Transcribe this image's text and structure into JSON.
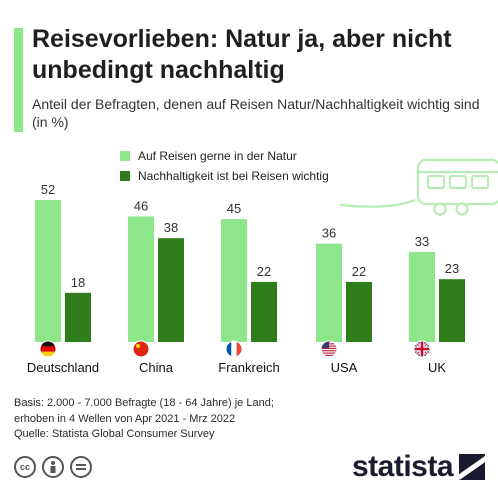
{
  "header": {
    "title": "Reisevorlieben: Natur ja, aber nicht unbedingt nachhaltig",
    "subtitle": "Anteil der Befragten, denen auf Reisen Natur/Nachhaltigkeit wichtig sind (in %)"
  },
  "colors": {
    "accent": "#8ee68a",
    "series_light": "#8ee68a",
    "series_dark": "#2e7d1a"
  },
  "chart_data": {
    "type": "bar",
    "categories": [
      "Deutschland",
      "China",
      "Frankreich",
      "USA",
      "UK"
    ],
    "series": [
      {
        "name": "Auf Reisen gerne in der Natur",
        "values": [
          52,
          46,
          45,
          36,
          33
        ]
      },
      {
        "name": "Nachhaltigkeit ist bei Reisen wichtig",
        "values": [
          18,
          38,
          22,
          22,
          23
        ]
      }
    ],
    "ylim": [
      0,
      52
    ],
    "grid": false,
    "legend": "top",
    "flags": [
      "flag-germany-icon",
      "flag-china-icon",
      "flag-france-icon",
      "flag-usa-icon",
      "flag-uk-icon"
    ]
  },
  "footer": {
    "basis_line1": "Basis: 2.000 - 7.000 Befragte (18 - 64 Jahre) je Land;",
    "basis_line2": "erhoben in 4 Wellen von Apr 2021 - Mrz 2022",
    "source": "Quelle: Statista Global Consumer Survey"
  },
  "license_icons": [
    "cc-icon",
    "by-icon",
    "nd-icon"
  ],
  "logo": {
    "text": "statista"
  }
}
